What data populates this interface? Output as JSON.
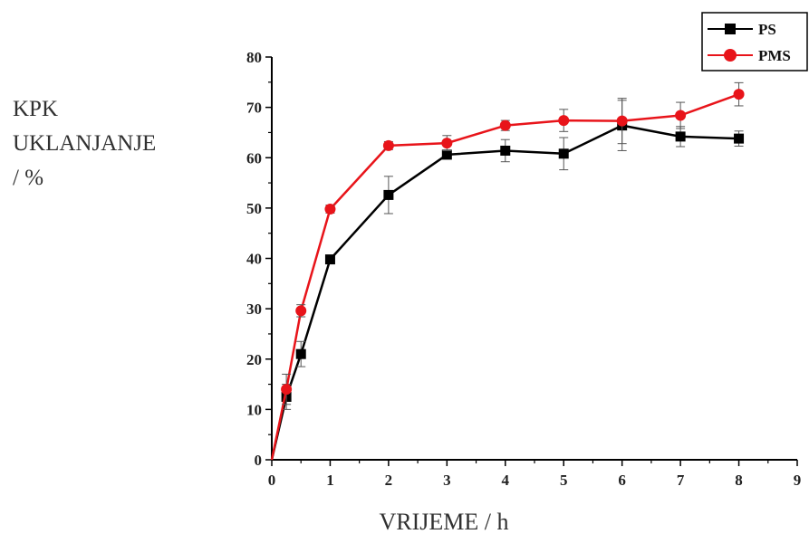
{
  "chart_data": {
    "type": "line",
    "ylabel_lines": [
      "KPK",
      "UKLANJANJE",
      "/ %"
    ],
    "xlabel": "VRIJEME / h",
    "xlim": [
      0,
      9
    ],
    "ylim": [
      0,
      80
    ],
    "x_ticks": [
      0,
      1,
      2,
      3,
      4,
      5,
      6,
      7,
      8,
      9
    ],
    "y_ticks": [
      0,
      10,
      20,
      30,
      40,
      50,
      60,
      70,
      80
    ],
    "legend_position": "top-right",
    "series": [
      {
        "name": "PS",
        "color": "#000000",
        "marker": "square",
        "x": [
          0,
          0.25,
          0.5,
          1,
          2,
          3,
          4,
          5,
          6,
          7,
          8
        ],
        "y": [
          0,
          12.5,
          21,
          39.8,
          52.6,
          60.6,
          61.4,
          60.8,
          66.4,
          64.2,
          63.8
        ],
        "err": [
          0,
          2.5,
          2.5,
          0.8,
          3.7,
          0.8,
          2.2,
          3.2,
          5,
          2,
          1.5
        ]
      },
      {
        "name": "PMS",
        "color": "#e8141a",
        "marker": "circle",
        "x": [
          0,
          0.25,
          0.5,
          1,
          2,
          3,
          4,
          5,
          6,
          7,
          8
        ],
        "y": [
          0,
          14,
          29.6,
          49.8,
          62.4,
          62.9,
          66.4,
          67.4,
          67.3,
          68.4,
          72.6
        ],
        "err": [
          0,
          3,
          1.2,
          0.8,
          0.8,
          1.5,
          1,
          2.2,
          4.5,
          2.6,
          2.3
        ]
      }
    ]
  }
}
